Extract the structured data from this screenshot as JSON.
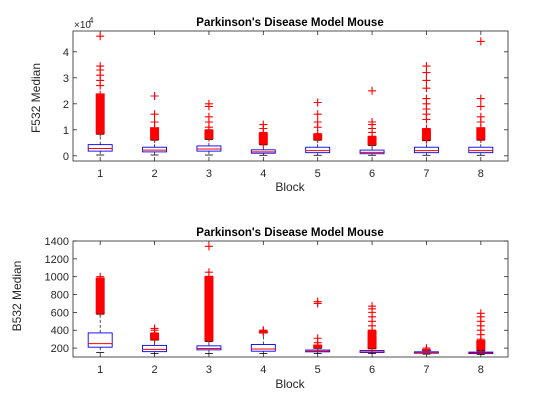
{
  "chart_data": [
    {
      "type": "boxplot",
      "title": "Parkinson's Disease Model Mouse",
      "xlabel": "Block",
      "ylabel": "F532 Median",
      "exponent_label": "×10",
      "exponent_power": "4",
      "categories": [
        "1",
        "2",
        "3",
        "4",
        "5",
        "6",
        "7",
        "8"
      ],
      "ylim": [
        -0.2,
        4.8
      ],
      "yticks": [
        0,
        1,
        2,
        3,
        4
      ],
      "ytick_labels": [
        "0",
        "1",
        "2",
        "3",
        "4"
      ],
      "box_color": "#0000ff",
      "median_color": "#ff0000",
      "outlier_color": "#ff0000",
      "boxes": [
        {
          "block": "1",
          "q1": 0.18,
          "median": 0.28,
          "q3": 0.43,
          "whisker_low": 0.03,
          "whisker_high": 0.83,
          "outlier_range": [
            0.85,
            2.4
          ],
          "outliers": [
            0.9,
            1.0,
            1.1,
            1.2,
            1.3,
            1.4,
            1.5,
            1.6,
            1.7,
            1.8,
            1.9,
            2.0,
            2.1,
            2.2,
            2.35,
            2.7,
            2.9,
            3.1,
            3.3,
            3.45,
            4.6
          ]
        },
        {
          "block": "2",
          "q1": 0.15,
          "median": 0.22,
          "q3": 0.33,
          "whisker_low": 0.03,
          "whisker_high": 0.6,
          "outlier_range": [
            0.62,
            1.1
          ],
          "outliers": [
            0.65,
            0.75,
            0.85,
            0.95,
            1.05,
            1.3,
            1.6,
            2.3
          ]
        },
        {
          "block": "3",
          "q1": 0.18,
          "median": 0.26,
          "q3": 0.38,
          "whisker_low": 0.03,
          "whisker_high": 0.63,
          "outlier_range": [
            0.65,
            1.0
          ],
          "outliers": [
            0.7,
            0.8,
            0.9,
            1.0,
            1.1,
            1.3,
            1.5,
            1.9,
            2.0
          ]
        },
        {
          "block": "4",
          "q1": 0.1,
          "median": 0.15,
          "q3": 0.23,
          "whisker_low": 0.02,
          "whisker_high": 0.42,
          "outlier_range": [
            0.44,
            0.9
          ],
          "outliers": [
            0.45,
            0.6,
            0.75,
            0.9,
            1.05,
            1.2
          ]
        },
        {
          "block": "5",
          "q1": 0.12,
          "median": 0.2,
          "q3": 0.33,
          "whisker_low": 0.02,
          "whisker_high": 0.6,
          "outlier_range": [
            0.62,
            0.85
          ],
          "outliers": [
            0.65,
            0.75,
            0.85,
            1.1,
            1.3,
            1.6,
            2.05
          ]
        },
        {
          "block": "6",
          "q1": 0.08,
          "median": 0.13,
          "q3": 0.22,
          "whisker_low": 0.02,
          "whisker_high": 0.4,
          "outlier_range": [
            0.42,
            0.75
          ],
          "outliers": [
            0.45,
            0.6,
            0.75,
            0.9,
            1.05,
            1.2,
            1.3,
            2.5
          ]
        },
        {
          "block": "7",
          "q1": 0.12,
          "median": 0.2,
          "q3": 0.33,
          "whisker_low": 0.02,
          "whisker_high": 0.58,
          "outlier_range": [
            0.6,
            1.05
          ],
          "outliers": [
            0.62,
            0.75,
            0.9,
            1.05,
            1.4,
            1.6,
            1.8,
            2.0,
            2.2,
            2.6,
            2.9,
            3.2,
            3.45
          ]
        },
        {
          "block": "8",
          "q1": 0.12,
          "median": 0.2,
          "q3": 0.33,
          "whisker_low": 0.02,
          "whisker_high": 0.6,
          "outlier_range": [
            0.62,
            1.1
          ],
          "outliers": [
            0.65,
            0.75,
            0.9,
            1.05,
            1.3,
            1.5,
            1.9,
            2.2,
            4.4
          ]
        }
      ]
    },
    {
      "type": "boxplot",
      "title": "Parkinson's Disease Model Mouse",
      "xlabel": "Block",
      "ylabel": "B532 Median",
      "categories": [
        "1",
        "2",
        "3",
        "4",
        "5",
        "6",
        "7",
        "8"
      ],
      "ylim": [
        100,
        1400
      ],
      "yticks": [
        200,
        400,
        600,
        800,
        1000,
        1200,
        1400
      ],
      "ytick_labels": [
        "200",
        "400",
        "600",
        "800",
        "1000",
        "1200",
        "1400"
      ],
      "box_color": "#0000ff",
      "median_color": "#ff0000",
      "outlier_color": "#ff0000",
      "boxes": [
        {
          "block": "1",
          "q1": 210,
          "median": 250,
          "q3": 370,
          "whisker_low": 150,
          "whisker_high": 580,
          "outlier_range": [
            585,
            990
          ],
          "outliers": [
            600,
            650,
            700,
            750,
            800,
            850,
            900,
            950,
            1000
          ]
        },
        {
          "block": "2",
          "q1": 160,
          "median": 185,
          "q3": 230,
          "whisker_low": 140,
          "whisker_high": 290,
          "outlier_range": [
            292,
            370
          ],
          "outliers": [
            300,
            320,
            345,
            370,
            400,
            420
          ]
        },
        {
          "block": "3",
          "q1": 180,
          "median": 195,
          "q3": 225,
          "whisker_low": 140,
          "whisker_high": 275,
          "outlier_range": [
            278,
            1010
          ],
          "outliers": [
            300,
            400,
            500,
            600,
            700,
            800,
            900,
            1000,
            1050,
            1340
          ]
        },
        {
          "block": "4",
          "q1": 165,
          "median": 190,
          "q3": 240,
          "whisker_low": 140,
          "whisker_high": 370,
          "outlier_range": [
            372,
            395
          ],
          "outliers": [
            375,
            390,
            400
          ]
        },
        {
          "block": "5",
          "q1": 158,
          "median": 165,
          "q3": 178,
          "whisker_low": 140,
          "whisker_high": 198,
          "outlier_range": [
            200,
            240
          ],
          "outliers": [
            210,
            230,
            260,
            310,
            700,
            720
          ]
        },
        {
          "block": "6",
          "q1": 150,
          "median": 158,
          "q3": 172,
          "whisker_low": 138,
          "whisker_high": 192,
          "outlier_range": [
            194,
            400
          ],
          "outliers": [
            200,
            250,
            300,
            350,
            400,
            450,
            500,
            550,
            600,
            640,
            670
          ]
        },
        {
          "block": "7",
          "q1": 143,
          "median": 150,
          "q3": 158,
          "whisker_low": 132,
          "whisker_high": 170,
          "outlier_range": [
            172,
            186
          ],
          "outliers": [
            175,
            185,
            200
          ]
        },
        {
          "block": "8",
          "q1": 138,
          "median": 145,
          "q3": 155,
          "whisker_low": 128,
          "whisker_high": 168,
          "outlier_range": [
            170,
            290
          ],
          "outliers": [
            180,
            220,
            260,
            300,
            350,
            400,
            450,
            500,
            550,
            590
          ]
        }
      ]
    }
  ]
}
